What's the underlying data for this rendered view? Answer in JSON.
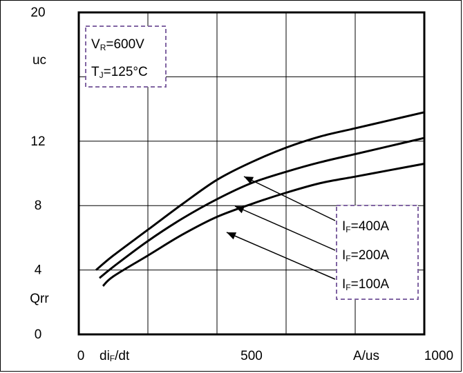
{
  "chart_data": {
    "type": "line",
    "x_axis": {
      "min": 0,
      "max": 1000,
      "ticks": [
        0,
        500,
        1000
      ],
      "tick_labels": [
        "0",
        "500",
        "1000"
      ],
      "label_main": "di",
      "label_sub": "F",
      "label_tail": "/dt",
      "unit": "A/us"
    },
    "y_axis": {
      "min": 0,
      "max": 20,
      "ticks": [
        0,
        4,
        8,
        12,
        20
      ],
      "tick_labels": [
        "0",
        "4",
        "8",
        "12",
        "20"
      ],
      "label": "Qrr",
      "unit": "uc"
    },
    "grid": true,
    "conditions": [
      {
        "main": "V",
        "sub": "R",
        "tail": "=600V"
      },
      {
        "main": "T",
        "sub": "J",
        "tail": "=125°C"
      }
    ],
    "series": [
      {
        "name": "IF=400A",
        "label_main": "I",
        "label_sub": "F",
        "label_tail": "=400A",
        "x": [
          50,
          100,
          200,
          300,
          400,
          500,
          600,
          700,
          800,
          900,
          1000
        ],
        "y": [
          4.0,
          4.9,
          6.5,
          8.1,
          9.6,
          10.7,
          11.6,
          12.3,
          12.8,
          13.3,
          13.8
        ]
      },
      {
        "name": "IF=200A",
        "label_main": "I",
        "label_sub": "F",
        "label_tail": "=200A",
        "x": [
          60,
          100,
          200,
          300,
          400,
          500,
          600,
          700,
          800,
          900,
          1000
        ],
        "y": [
          3.5,
          4.2,
          5.8,
          7.2,
          8.4,
          9.4,
          10.1,
          10.7,
          11.2,
          11.7,
          12.2
        ]
      },
      {
        "name": "IF=100A",
        "label_main": "I",
        "label_sub": "F",
        "label_tail": "=100A",
        "x": [
          70,
          100,
          200,
          300,
          400,
          500,
          600,
          700,
          800,
          900,
          1000
        ],
        "y": [
          3.0,
          3.6,
          4.9,
          6.2,
          7.3,
          8.1,
          8.8,
          9.4,
          9.8,
          10.2,
          10.6
        ]
      }
    ],
    "colors": {
      "curve": "#000000",
      "grid": "#000000",
      "box_border": "#8064a2"
    }
  }
}
